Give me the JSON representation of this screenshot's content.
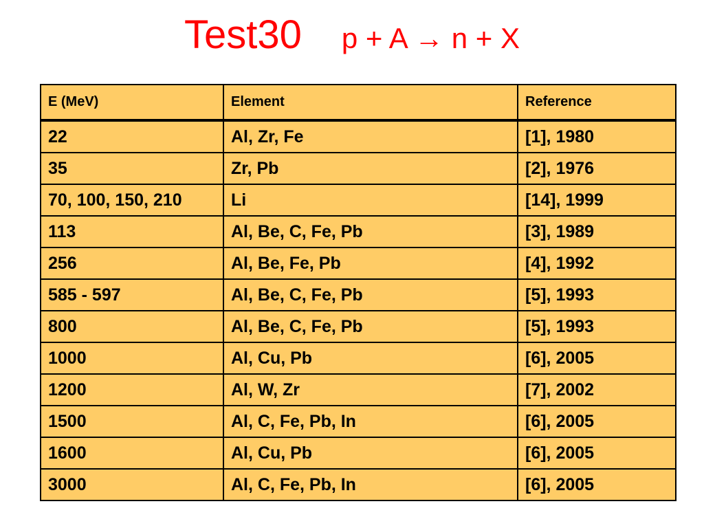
{
  "title": {
    "main": "Test30",
    "reaction": "p + A → n + X"
  },
  "table": {
    "headers": [
      "E (MeV)",
      "Element",
      "Reference"
    ],
    "rows": [
      [
        "22",
        "Al, Zr, Fe",
        "[1], 1980"
      ],
      [
        "35",
        "Zr, Pb",
        "[2], 1976"
      ],
      [
        "70, 100, 150, 210",
        "Li",
        "[14], 1999"
      ],
      [
        "113",
        "Al, Be, C, Fe, Pb",
        "[3], 1989"
      ],
      [
        "256",
        "Al, Be, Fe, Pb",
        "[4], 1992"
      ],
      [
        "585 - 597",
        "Al, Be, C, Fe, Pb",
        "[5], 1993"
      ],
      [
        "800",
        "Al, Be, C, Fe, Pb",
        "[5], 1993"
      ],
      [
        "1000",
        "Al, Cu, Pb",
        "[6], 2005"
      ],
      [
        "1200",
        "Al, W, Zr",
        "[7], 2002"
      ],
      [
        "1500",
        "Al, C, Fe, Pb, In",
        "[6], 2005"
      ],
      [
        "1600",
        "Al, Cu, Pb",
        "[6], 2005"
      ],
      [
        "3000",
        "Al, C, Fe, Pb, In",
        "[6], 2005"
      ]
    ]
  },
  "colors": {
    "title": "#ff0000",
    "table_fill": "#ffcc66",
    "border": "#000000"
  }
}
